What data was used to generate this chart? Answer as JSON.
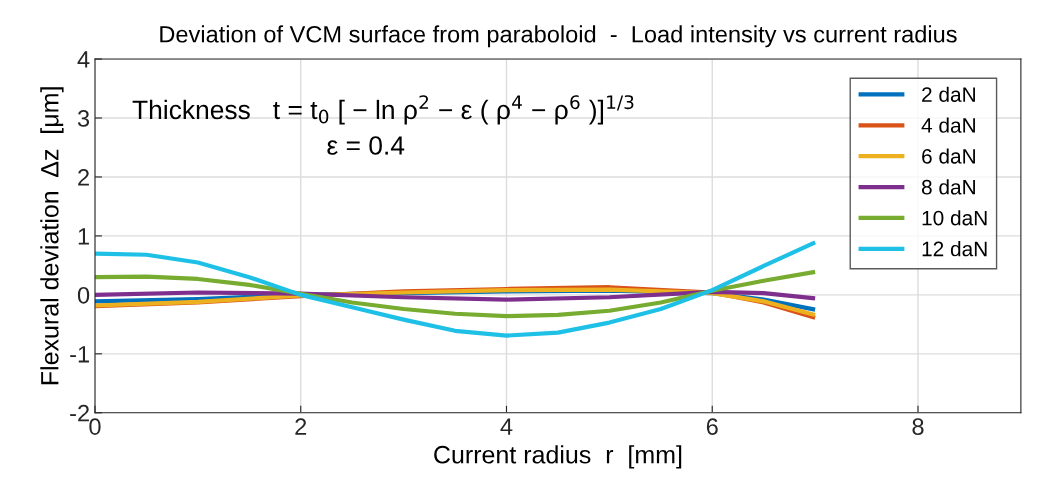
{
  "chart_data": {
    "type": "line",
    "title": "Deviation of VCM surface from paraboloid  -  Load intensity vs current radius",
    "xlabel": "Current radius  r  [mm]",
    "ylabel": "Flexural deviation  Δz  [μm]",
    "xlim": [
      0,
      9
    ],
    "xticks": [
      0,
      2,
      4,
      6,
      8
    ],
    "ylim": [
      -2,
      4
    ],
    "yticks": [
      -2,
      -1,
      0,
      1,
      2,
      3,
      4
    ],
    "grid": true,
    "legend": "top right",
    "line_style": "solid",
    "marker": "none",
    "annotations": [
      "Thickness   t = t$_{0}$ [ − ln ρ$^{2}$ − ε ( ρ$^{4}$ − ρ$^{6}$ )]$^{1/3}$",
      "ε = 0.4"
    ],
    "series": [
      {
        "name": "2 daN",
        "color": "#0072bd",
        "x": [
          0,
          1,
          2,
          3,
          4,
          5,
          6,
          6.5,
          7
        ],
        "values": [
          -0.11,
          -0.07,
          0,
          0.03,
          0.06,
          0.07,
          0.03,
          -0.08,
          -0.25
        ]
      },
      {
        "name": "4 daN",
        "color": "#d95319",
        "x": [
          0,
          1,
          2,
          3,
          4,
          5,
          6,
          6.5,
          7
        ],
        "values": [
          -0.19,
          -0.13,
          -0.02,
          0.06,
          0.1,
          0.13,
          0.04,
          -0.13,
          -0.39
        ]
      },
      {
        "name": "6 daN",
        "color": "#edb120",
        "x": [
          0,
          1,
          2,
          3,
          4,
          5,
          6,
          6.5,
          7
        ],
        "values": [
          -0.18,
          -0.12,
          -0.01,
          0.04,
          0.08,
          0.09,
          0.03,
          -0.11,
          -0.34
        ]
      },
      {
        "name": "8 daN",
        "color": "#7e2f8e",
        "x": [
          0,
          1,
          2,
          3,
          4,
          5,
          6,
          6.5,
          7
        ],
        "values": [
          0,
          0.04,
          0.02,
          -0.04,
          -0.08,
          -0.04,
          0.05,
          0.03,
          -0.06
        ]
      },
      {
        "name": "10 daN",
        "color": "#77ac30",
        "x": [
          0,
          0.5,
          1,
          1.5,
          2,
          2.5,
          3,
          3.5,
          4,
          4.5,
          5,
          5.5,
          6,
          6.5,
          7
        ],
        "values": [
          0.3,
          0.31,
          0.27,
          0.17,
          0.02,
          -0.13,
          -0.24,
          -0.32,
          -0.36,
          -0.34,
          -0.27,
          -0.13,
          0.07,
          0.24,
          0.39
        ]
      },
      {
        "name": "12 daN",
        "color": "#1ec0e6",
        "x": [
          0,
          0.5,
          1,
          1.5,
          2,
          2.5,
          3,
          3.5,
          4,
          4.5,
          5,
          5.5,
          6,
          6.5,
          7
        ],
        "values": [
          0.7,
          0.68,
          0.55,
          0.3,
          0,
          -0.21,
          -0.42,
          -0.61,
          -0.69,
          -0.64,
          -0.47,
          -0.24,
          0.08,
          0.49,
          0.89
        ]
      }
    ]
  }
}
